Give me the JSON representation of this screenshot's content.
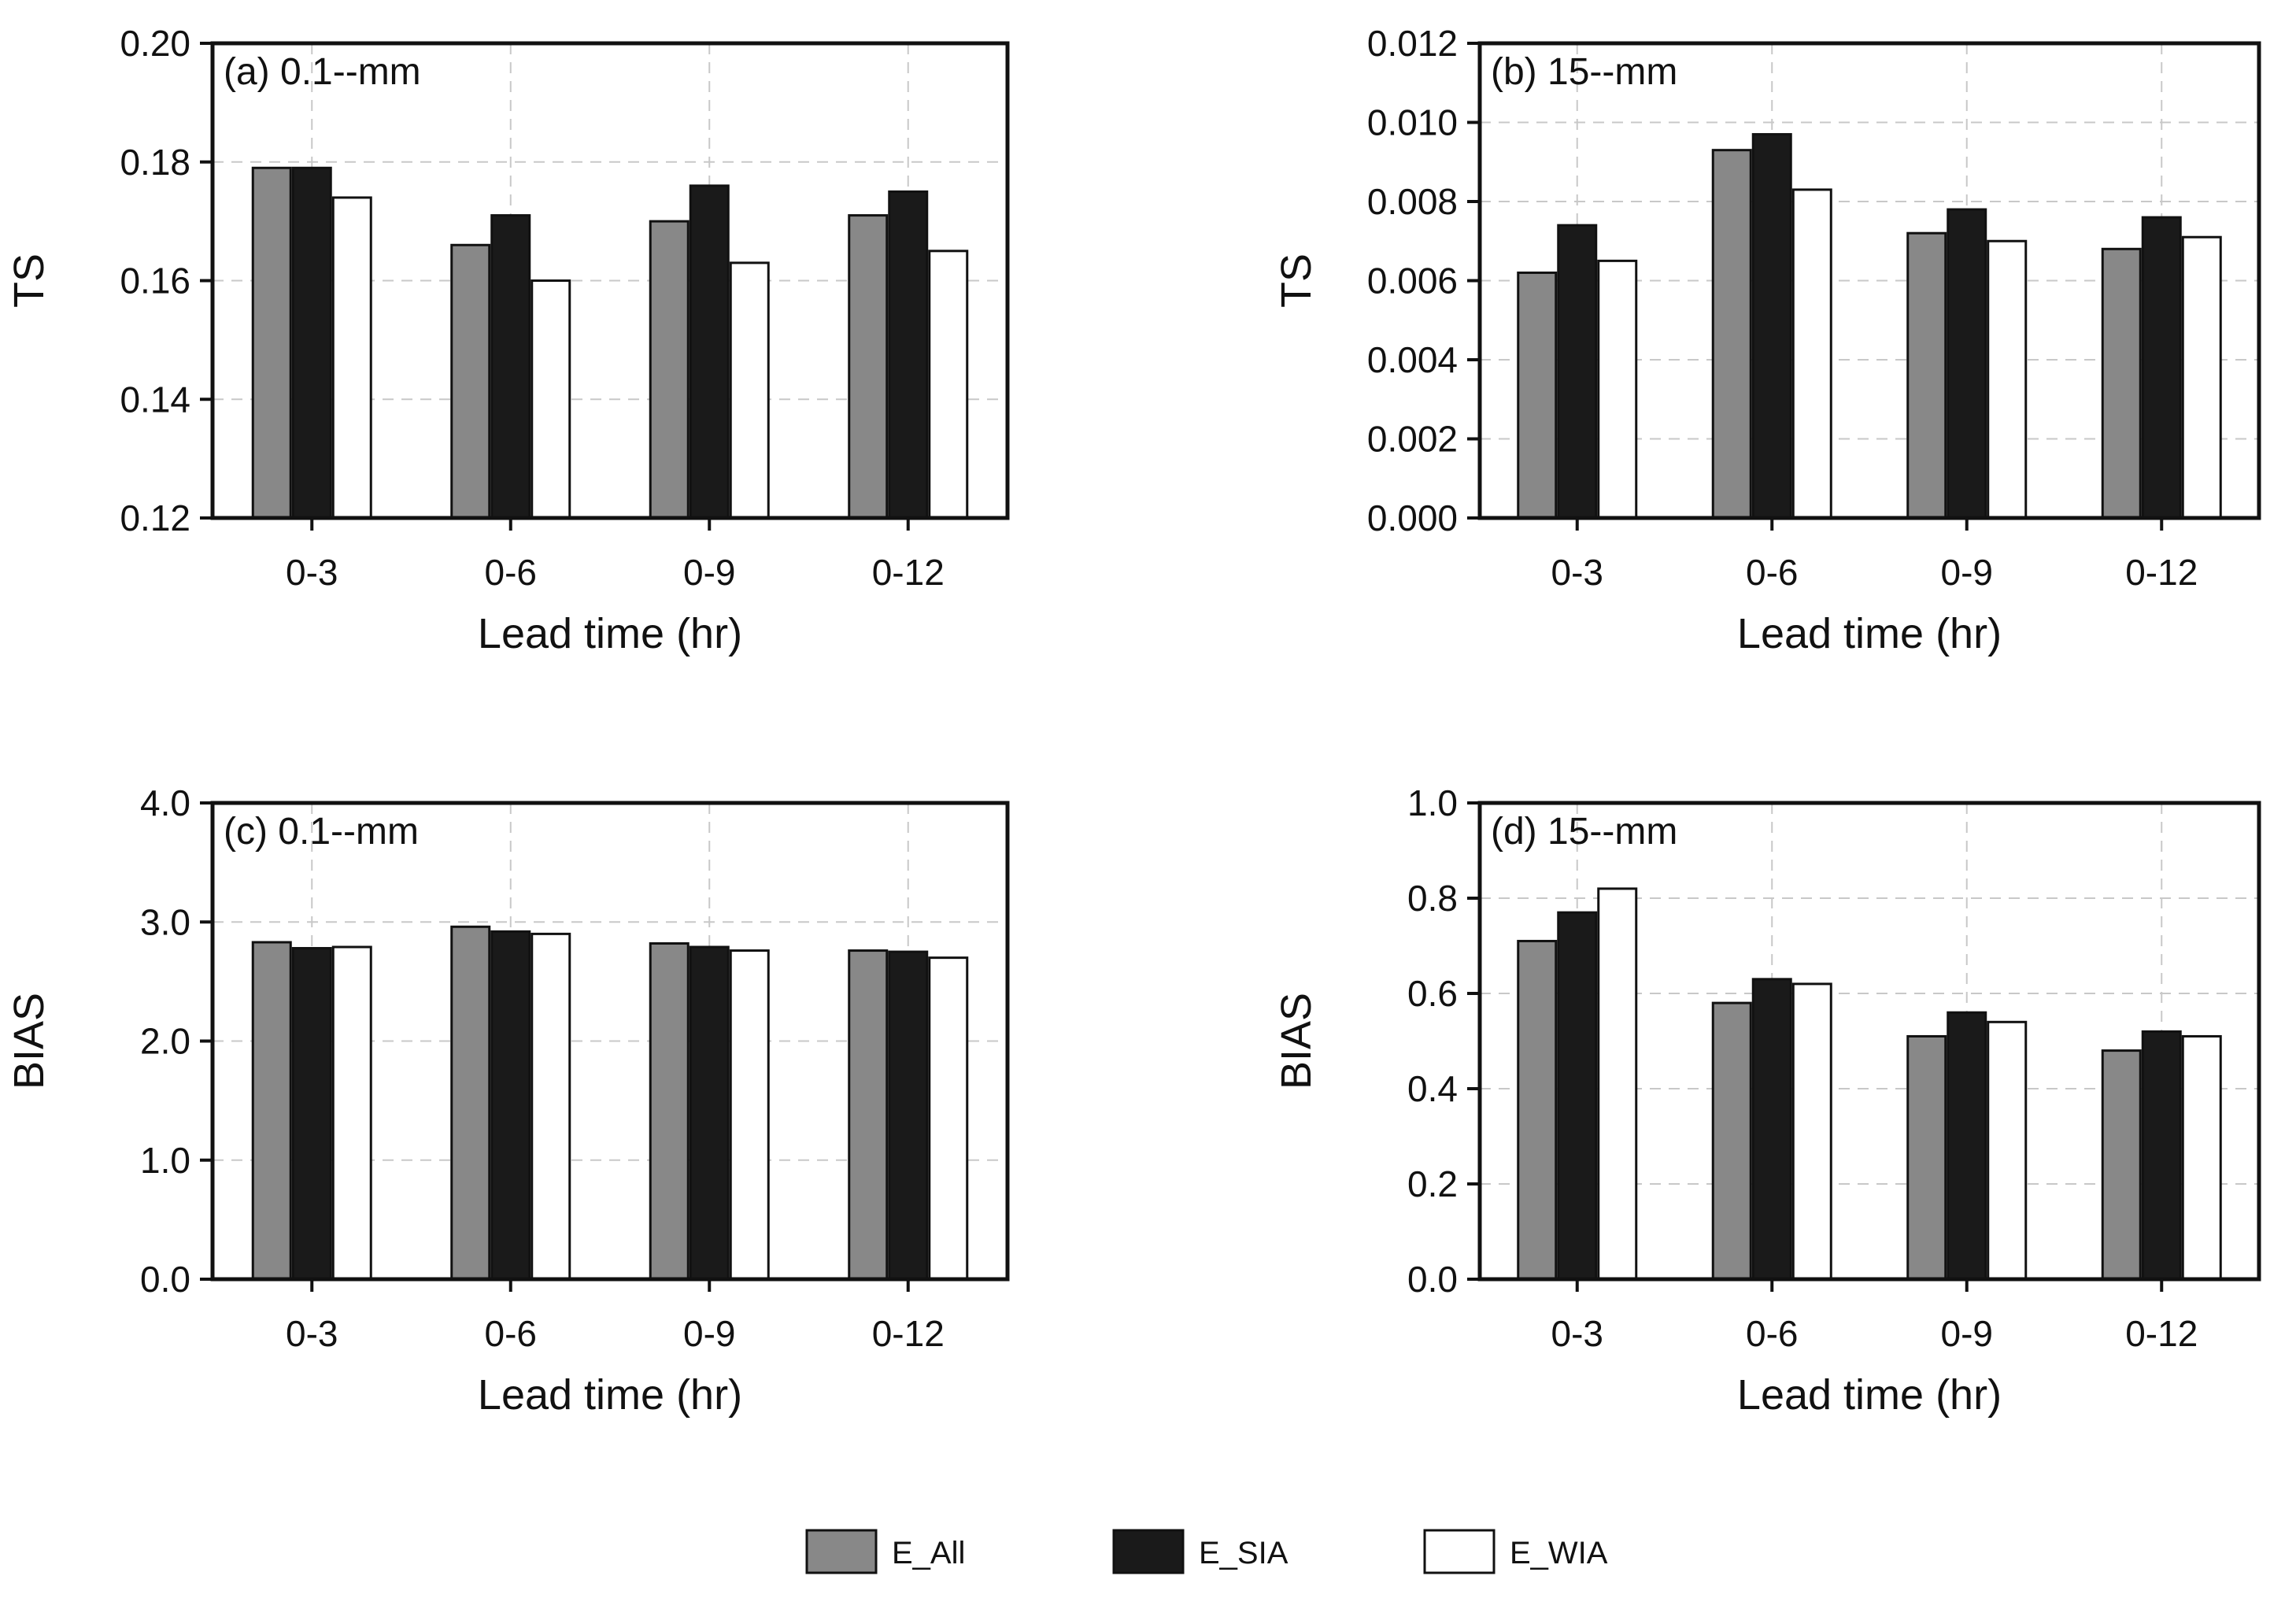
{
  "figure": {
    "legend": [
      {
        "name": "E_All",
        "color": "#888888"
      },
      {
        "name": "E_SIA",
        "color": "#1a1a1a"
      },
      {
        "name": "E_WIA",
        "color": "#ffffff"
      }
    ],
    "series_colors": [
      "#888888",
      "#1a1a1a",
      "#ffffff"
    ],
    "gridline_color": "#c8c8c8",
    "axis_color": "#111111"
  },
  "chart_data": [
    {
      "id": "a",
      "type": "bar",
      "annotation": "(a) 0.1--mm",
      "xlabel": "Lead time (hr)",
      "ylabel": "TS",
      "categories": [
        "0-3",
        "0-6",
        "0-9",
        "0-12"
      ],
      "ylim": [
        0.12,
        0.2
      ],
      "yticks": [
        0.12,
        0.14,
        0.16,
        0.18,
        0.2
      ],
      "ytick_labels": [
        "0.12",
        "0.14",
        "0.16",
        "0.18",
        "0.20"
      ],
      "grid": true,
      "series": [
        {
          "name": "E_All",
          "values": [
            0.179,
            0.166,
            0.17,
            0.171
          ]
        },
        {
          "name": "E_SIA",
          "values": [
            0.179,
            0.171,
            0.176,
            0.175
          ]
        },
        {
          "name": "E_WIA",
          "values": [
            0.174,
            0.16,
            0.163,
            0.165
          ]
        }
      ]
    },
    {
      "id": "b",
      "type": "bar",
      "annotation": "(b) 15--mm",
      "xlabel": "Lead time (hr)",
      "ylabel": "TS",
      "categories": [
        "0-3",
        "0-6",
        "0-9",
        "0-12"
      ],
      "ylim": [
        0.0,
        0.012
      ],
      "yticks": [
        0.0,
        0.002,
        0.004,
        0.006,
        0.008,
        0.01,
        0.012
      ],
      "ytick_labels": [
        "0.000",
        "0.002",
        "0.004",
        "0.006",
        "0.008",
        "0.010",
        "0.012"
      ],
      "grid": true,
      "series": [
        {
          "name": "E_All",
          "values": [
            0.0062,
            0.0093,
            0.0072,
            0.0068
          ]
        },
        {
          "name": "E_SIA",
          "values": [
            0.0074,
            0.0097,
            0.0078,
            0.0076
          ]
        },
        {
          "name": "E_WIA",
          "values": [
            0.0065,
            0.0083,
            0.007,
            0.0071
          ]
        }
      ]
    },
    {
      "id": "c",
      "type": "bar",
      "annotation": "(c) 0.1--mm",
      "xlabel": "Lead time (hr)",
      "ylabel": "BIAS",
      "categories": [
        "0-3",
        "0-6",
        "0-9",
        "0-12"
      ],
      "ylim": [
        0.0,
        4.0
      ],
      "yticks": [
        0.0,
        1.0,
        2.0,
        3.0,
        4.0
      ],
      "ytick_labels": [
        "0.0",
        "1.0",
        "2.0",
        "3.0",
        "4.0"
      ],
      "grid": true,
      "series": [
        {
          "name": "E_All",
          "values": [
            2.83,
            2.96,
            2.82,
            2.76
          ]
        },
        {
          "name": "E_SIA",
          "values": [
            2.78,
            2.92,
            2.79,
            2.75
          ]
        },
        {
          "name": "E_WIA",
          "values": [
            2.79,
            2.9,
            2.76,
            2.7
          ]
        }
      ]
    },
    {
      "id": "d",
      "type": "bar",
      "annotation": "(d) 15--mm",
      "xlabel": "Lead time (hr)",
      "ylabel": "BIAS",
      "categories": [
        "0-3",
        "0-6",
        "0-9",
        "0-12"
      ],
      "ylim": [
        0.0,
        1.0
      ],
      "yticks": [
        0.0,
        0.2,
        0.4,
        0.6,
        0.8,
        1.0
      ],
      "ytick_labels": [
        "0.0",
        "0.2",
        "0.4",
        "0.6",
        "0.8",
        "1.0"
      ],
      "grid": true,
      "series": [
        {
          "name": "E_All",
          "values": [
            0.71,
            0.58,
            0.51,
            0.48
          ]
        },
        {
          "name": "E_SIA",
          "values": [
            0.77,
            0.63,
            0.56,
            0.52
          ]
        },
        {
          "name": "E_WIA",
          "values": [
            0.82,
            0.62,
            0.54,
            0.51
          ]
        }
      ]
    }
  ]
}
